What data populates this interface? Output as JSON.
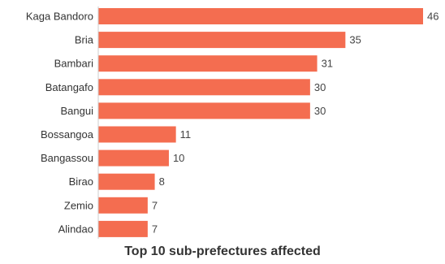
{
  "chart_data": {
    "type": "bar",
    "orientation": "horizontal",
    "title": "Top 10 sub-prefectures affected",
    "xlabel": "",
    "ylabel": "",
    "categories": [
      "Kaga Bandoro",
      "Bria",
      "Bambari",
      "Batangafo",
      "Bangui",
      "Bossangoa",
      "Bangassou",
      "Birao",
      "Zemio",
      "Alindao"
    ],
    "values": [
      46,
      35,
      31,
      30,
      30,
      11,
      10,
      8,
      7,
      7
    ],
    "xlim": [
      0,
      46
    ],
    "grid": false,
    "legend": "none",
    "bar_color": "#f46d50",
    "data_labels": true
  }
}
